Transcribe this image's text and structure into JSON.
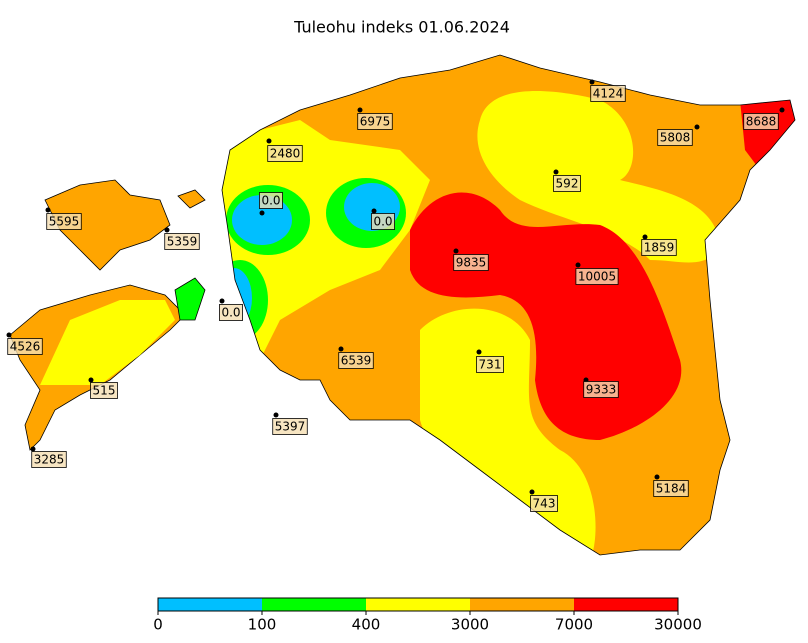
{
  "title": "Tuleohu indeks 01.06.2024",
  "stations": [
    "4124",
    "8688",
    "6975",
    "5808",
    "2480",
    "592",
    "0.0",
    "0.0",
    "5595",
    "5359",
    "1859",
    "9835",
    "10005",
    "0.0",
    "4526",
    "6539",
    "731",
    "515",
    "9333",
    "5397",
    "3285",
    "743",
    "5184"
  ],
  "legend": {
    "ticks": [
      0,
      100,
      400,
      3000,
      7000,
      30000
    ],
    "colors": [
      "#00bfff",
      "#00ff00",
      "#ffff00",
      "#ffa500",
      "#ff0000"
    ]
  }
}
